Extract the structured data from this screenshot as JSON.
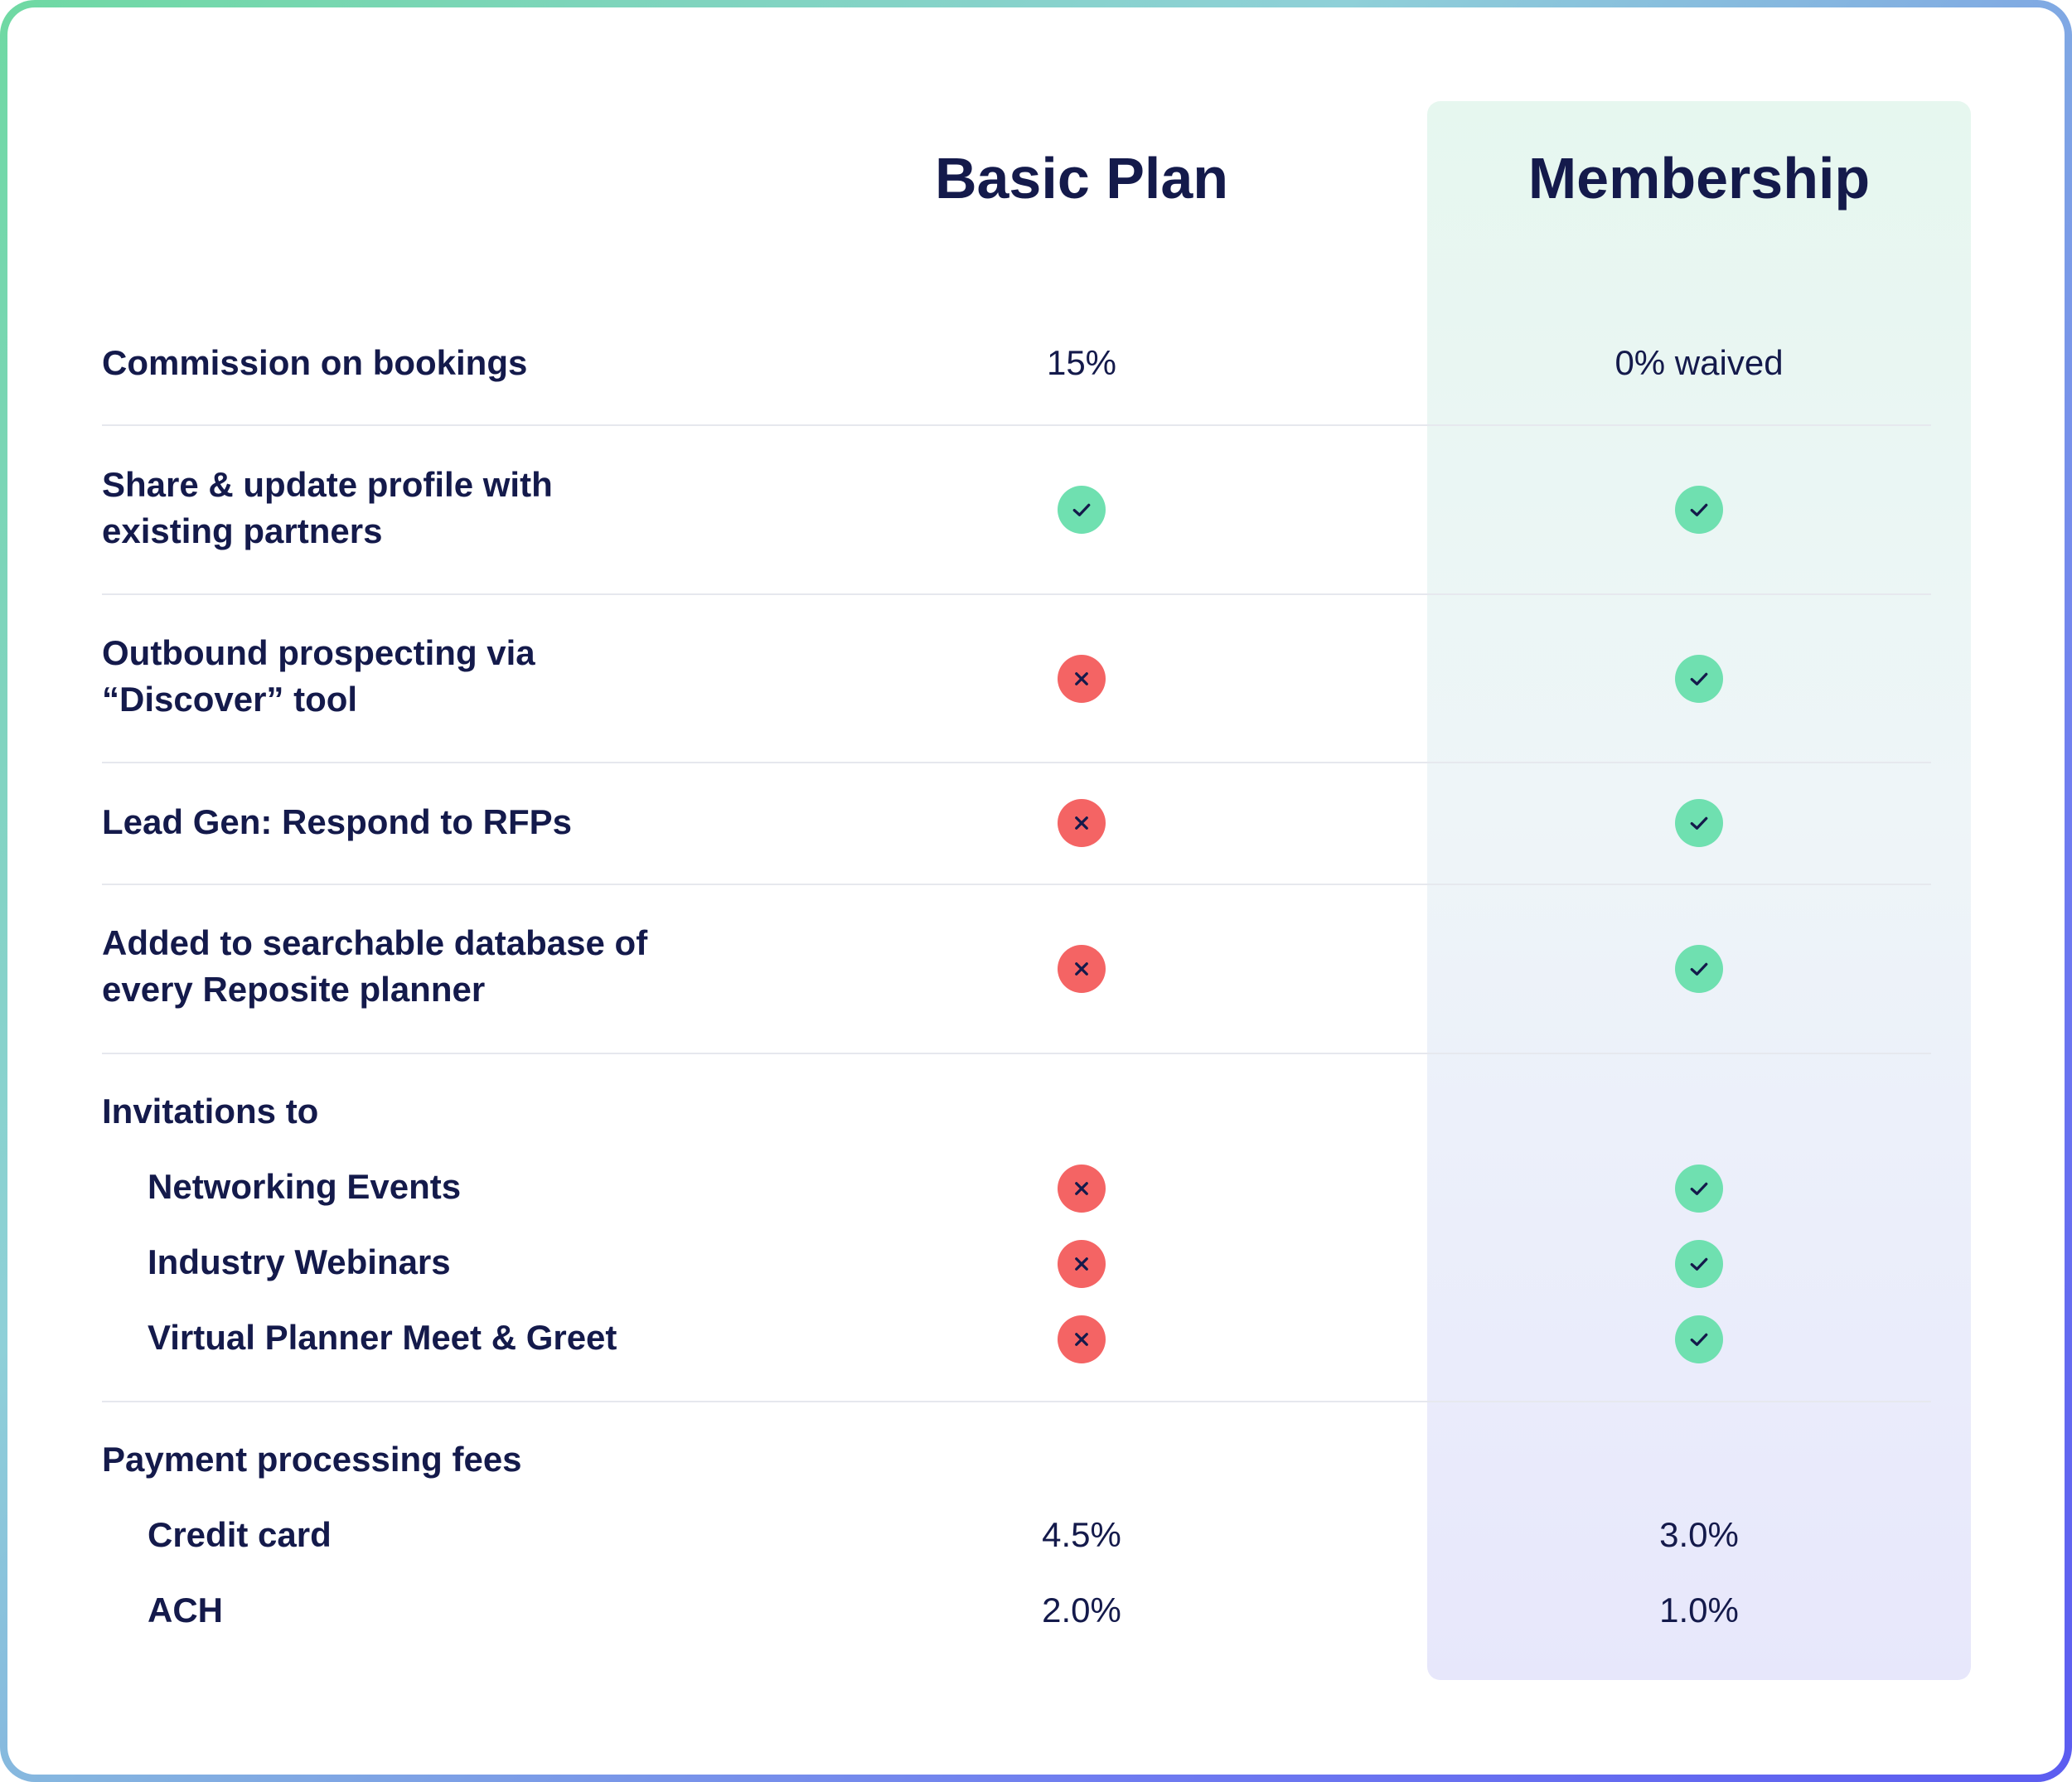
{
  "columns": {
    "basic": "Basic Plan",
    "membership": "Membership"
  },
  "rows": {
    "commission": {
      "label": "Commission on bookings",
      "basic": "15%",
      "membership": "0% waived"
    },
    "share": {
      "label_line1": "Share & update profile with",
      "label_line2": "existing partners",
      "basic": "included",
      "membership": "included"
    },
    "outbound": {
      "label_line1": "Outbound prospecting via",
      "label_line2": "“Discover” tool",
      "basic": "excluded",
      "membership": "included"
    },
    "leadgen": {
      "label": "Lead Gen: Respond to RFPs",
      "basic": "excluded",
      "membership": "included"
    },
    "database": {
      "label_line1": "Added to searchable database of",
      "label_line2": "every Reposite planner",
      "basic": "excluded",
      "membership": "included"
    },
    "invitations": {
      "label": "Invitations to",
      "items": [
        {
          "label": "Networking Events",
          "basic": "excluded",
          "membership": "included"
        },
        {
          "label": "Industry Webinars",
          "basic": "excluded",
          "membership": "included"
        },
        {
          "label": "Virtual Planner Meet & Greet",
          "basic": "excluded",
          "membership": "included"
        }
      ]
    },
    "payment": {
      "label": "Payment processing fees",
      "items": [
        {
          "label": "Credit card",
          "basic": "4.5%",
          "membership": "3.0%"
        },
        {
          "label": "ACH",
          "basic": "2.0%",
          "membership": "1.0%"
        }
      ]
    }
  },
  "icons": {
    "included": "check-circle-icon",
    "excluded": "x-circle-icon"
  },
  "colors": {
    "text": "#141a4b",
    "check": "#6fe0b0",
    "cross": "#f46464",
    "accent": "#5b5cf0"
  }
}
